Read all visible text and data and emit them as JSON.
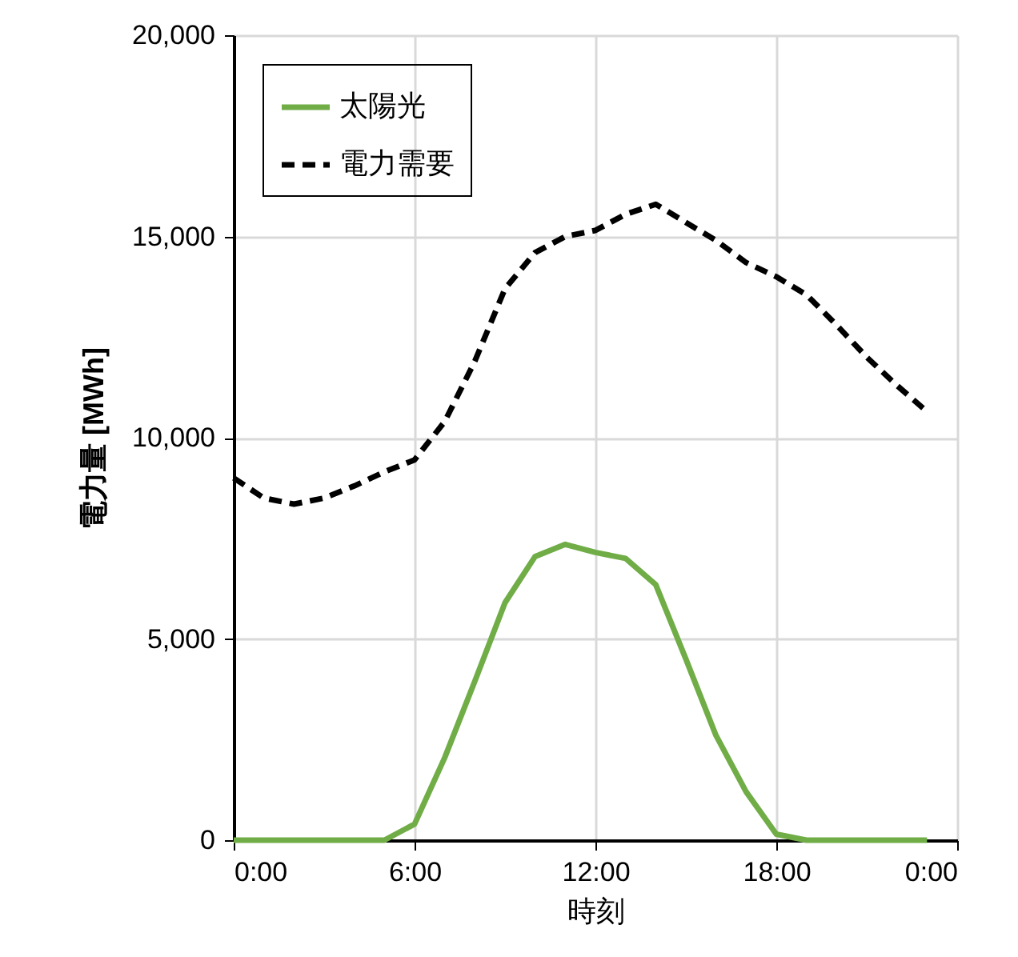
{
  "chart_data": {
    "type": "line",
    "xlabel": "時刻",
    "ylabel": "電力量 [MWh]",
    "x": [
      0,
      1,
      2,
      3,
      4,
      5,
      6,
      7,
      8,
      9,
      10,
      11,
      12,
      13,
      14,
      15,
      16,
      17,
      18,
      19,
      20,
      21,
      22,
      23
    ],
    "series": [
      {
        "name": "太陽光",
        "color": "#70ad47",
        "line_style": "solid",
        "values": [
          0,
          0,
          0,
          0,
          0,
          0,
          400,
          2050,
          3950,
          5900,
          7050,
          7350,
          7150,
          7000,
          6350,
          4500,
          2600,
          1200,
          150,
          0,
          0,
          0,
          0,
          0
        ]
      },
      {
        "name": "電力需要",
        "color": "#000000",
        "line_style": "dashed",
        "values": [
          9000,
          8500,
          8350,
          8500,
          8800,
          9150,
          9450,
          10400,
          11900,
          13700,
          14600,
          15000,
          15150,
          15550,
          15800,
          15350,
          14900,
          14350,
          14000,
          13550,
          12800,
          12000,
          11300,
          10650
        ]
      }
    ],
    "xlim": [
      0,
      24
    ],
    "xticks": [
      {
        "value": 0,
        "label": "0:00"
      },
      {
        "value": 6,
        "label": "6:00"
      },
      {
        "value": 12,
        "label": "12:00"
      },
      {
        "value": 18,
        "label": "18:00"
      },
      {
        "value": 24,
        "label": "0:00"
      }
    ],
    "ylim": [
      0,
      20000
    ],
    "yticks": [
      {
        "value": 0,
        "label": "0"
      },
      {
        "value": 5000,
        "label": "5,000"
      },
      {
        "value": 10000,
        "label": "10,000"
      },
      {
        "value": 15000,
        "label": "15,000"
      },
      {
        "value": 20000,
        "label": "20,000"
      }
    ],
    "grid": true,
    "legend": "top left",
    "marker": "none"
  }
}
